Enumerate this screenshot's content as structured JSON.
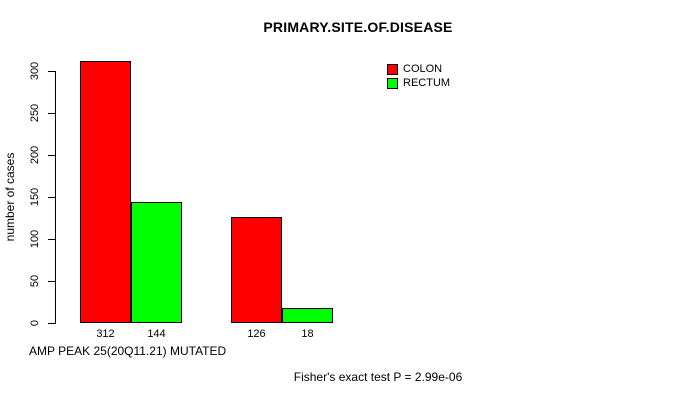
{
  "title": "PRIMARY.SITE.OF.DISEASE",
  "y_axis_title": "number of cases",
  "x_axis_title": "AMP PEAK 25(20Q11.21) MUTATED",
  "footnote": "Fisher's exact test P = 2.99e-06",
  "legend": [
    {
      "label": "COLON",
      "color": "#ff0000"
    },
    {
      "label": "RECTUM",
      "color": "#00ff00"
    }
  ],
  "chart_data": {
    "type": "bar",
    "title": "PRIMARY.SITE.OF.DISEASE",
    "xlabel": "AMP PEAK 25(20Q11.21) MUTATED",
    "ylabel": "number of cases",
    "series": [
      {
        "name": "COLON",
        "color": "#ff0000",
        "values": [
          312,
          126
        ]
      },
      {
        "name": "RECTUM",
        "color": "#00ff00",
        "values": [
          144,
          18
        ]
      }
    ],
    "bar_value_labels": [
      312,
      144,
      126,
      18
    ],
    "yticks": [
      0,
      50,
      100,
      150,
      200,
      250,
      300
    ],
    "ylim": [
      0,
      312
    ],
    "grid": false,
    "legend_position": "top-right",
    "annotation": "Fisher's exact test P = 2.99e-06"
  }
}
